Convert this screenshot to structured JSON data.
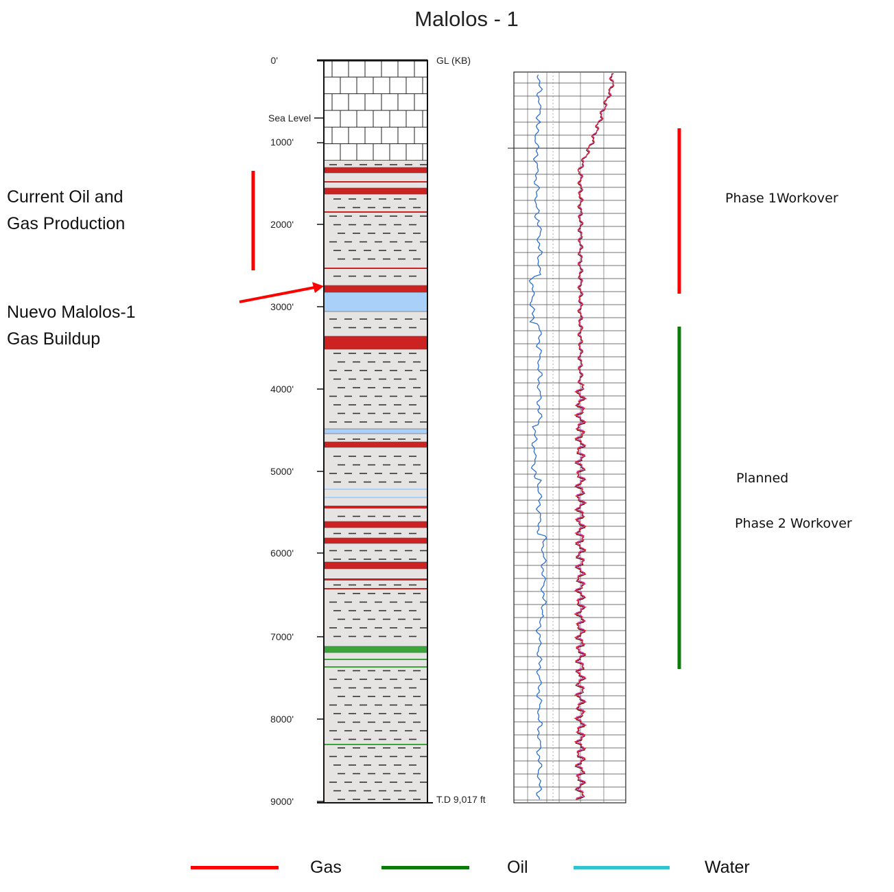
{
  "title": "Malolos - 1",
  "depth_labels": [
    "0'",
    "1000'",
    "2000'",
    "3000'",
    "4000'",
    "5000'",
    "6000'",
    "7000'",
    "8000'",
    "9000'"
  ],
  "sea_level_label": "Sea Level",
  "top_label": "GL (KB)",
  "td_label": "T.D 9,017 ft",
  "annotations": {
    "current_line1": "Current Oil and",
    "current_line2": "Gas Production",
    "nuevo_line1": "Nuevo Malolos-1",
    "nuevo_line2": "Gas Buildup",
    "phase1": "Phase 1Workover",
    "planned": "Planned",
    "phase2": "Phase 2 Workover"
  },
  "legend": [
    {
      "label": "Gas",
      "color": "#ff0000"
    },
    {
      "label": "Oil",
      "color": "#0a7a0a"
    },
    {
      "label": "Water",
      "color": "#33c2d0"
    }
  ],
  "colors": {
    "gas": "#cc2222",
    "oil": "#3aa63a",
    "water": "#a8d0f8",
    "shale": "#e6e3e3",
    "phase1_bar": "#ff0000",
    "phase2_bar": "#0a7a0a"
  }
}
